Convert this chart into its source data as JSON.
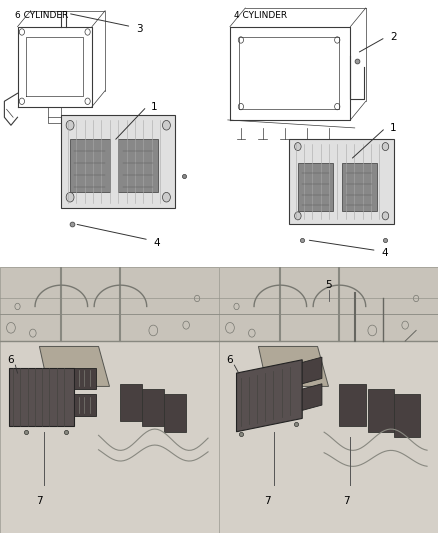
{
  "background_color": "#ffffff",
  "top_left_label": "6 CYLINDER",
  "top_right_label": "4 CYLINDER",
  "label_fontsize": 6.5,
  "callout_fontsize": 7.5,
  "text_color": "#000000",
  "line_color": "#555555",
  "thin_line": 0.5,
  "medium_line": 0.8,
  "thick_line": 1.2,
  "draw_color": "#3a3a3a",
  "light_gray": "#e8e8e8",
  "mid_gray": "#aaaaaa",
  "dark_gray": "#555555",
  "photo_bg": "#c0bab2",
  "photo_mid": "#a0998f",
  "photo_dark": "#706860"
}
